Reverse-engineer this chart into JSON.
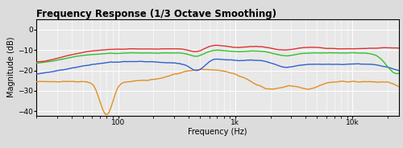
{
  "title": "Frequency Response (1/3 Octave Smoothing)",
  "xlabel": "Frequency (Hz)",
  "ylabel": "Magnitude (dB)",
  "xlim": [
    20,
    25000
  ],
  "ylim": [
    -42,
    5
  ],
  "yticks": [
    0,
    -10,
    -20,
    -30,
    -40
  ],
  "bg_color": "#dcdcdc",
  "plot_bg_color": "#e8e8e8",
  "grid_color": "#ffffff",
  "title_fontsize": 8.5,
  "label_fontsize": 7,
  "tick_fontsize": 6.5,
  "line_colors": {
    "red": "#e03030",
    "green": "#30c030",
    "blue": "#3060d0",
    "orange": "#e09020"
  },
  "line_width": 1.0
}
